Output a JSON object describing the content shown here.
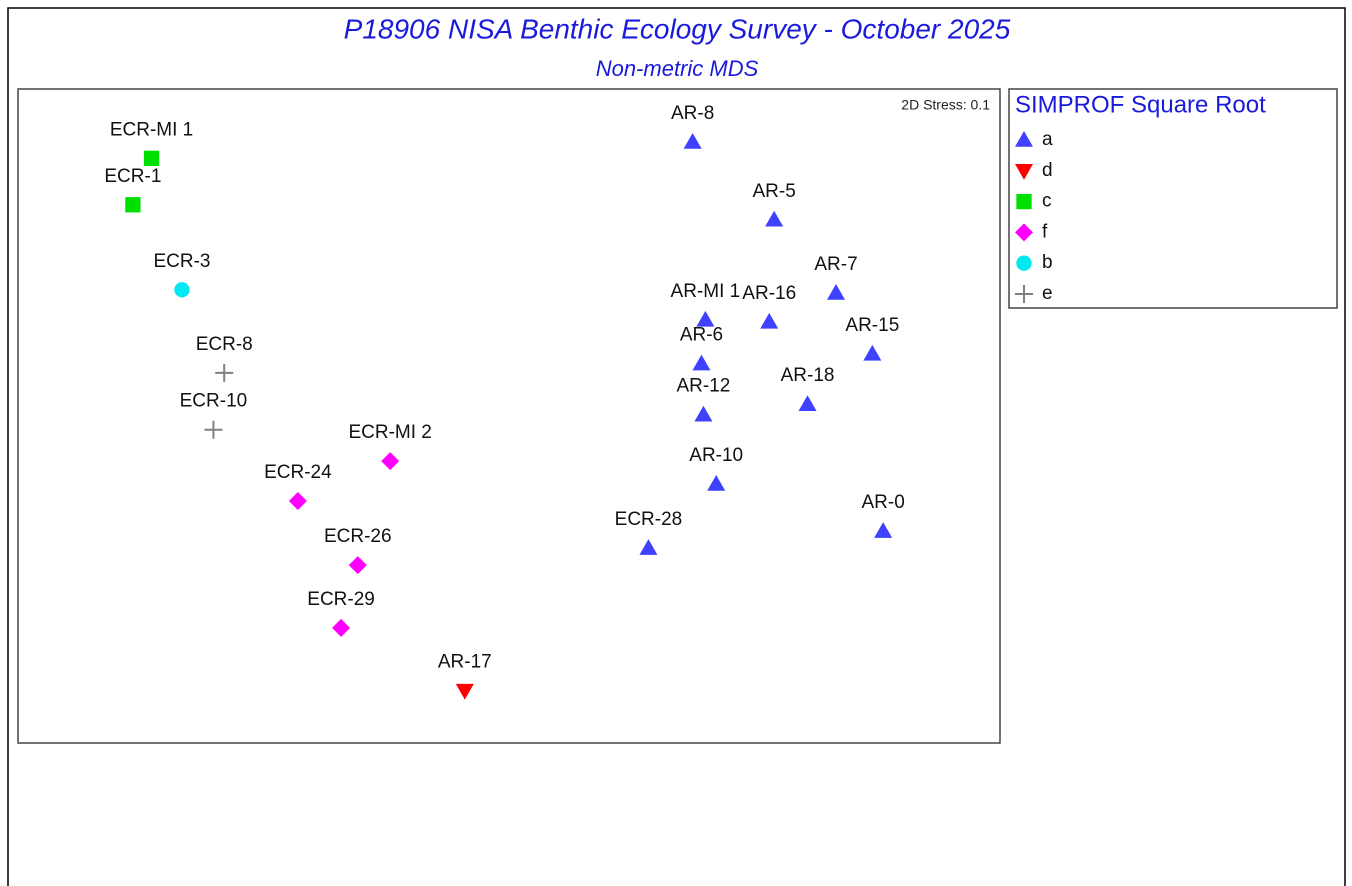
{
  "chart_data": {
    "type": "scatter",
    "title": "P18906 NISA Benthic Ecology Survey - October 2025",
    "subtitle": "Non-metric MDS",
    "annotation": "2D Stress: 0.1",
    "legend_title": "SIMPROF Square Root",
    "legend": "outside-right",
    "xlim": [
      0,
      100
    ],
    "ylim": [
      0,
      100
    ],
    "series": [
      {
        "name": "a",
        "color": "#4040ff",
        "marker": "triangle-up",
        "labels": [
          "AR-8",
          "AR-5",
          "AR-7",
          "AR-MI 1",
          "AR-16",
          "AR-15",
          "AR-6",
          "AR-18",
          "AR-12",
          "AR-10",
          "AR-0",
          "ECR-28"
        ],
        "x": [
          68.7,
          77.0,
          83.3,
          70.0,
          76.5,
          87.0,
          69.6,
          80.4,
          69.8,
          71.1,
          88.1,
          64.2
        ],
        "y": [
          91.9,
          80.0,
          68.8,
          64.7,
          64.4,
          59.5,
          58.0,
          51.8,
          50.2,
          39.6,
          32.4,
          29.8
        ]
      },
      {
        "name": "d",
        "color": "#ff0000",
        "marker": "triangle-down",
        "labels": [
          "AR-17"
        ],
        "x": [
          45.5
        ],
        "y": [
          8.0
        ]
      },
      {
        "name": "c",
        "color": "#00e000",
        "marker": "square",
        "labels": [
          "ECR-MI 1",
          "ECR-1"
        ],
        "x": [
          13.6,
          11.7
        ],
        "y": [
          89.4,
          82.3
        ]
      },
      {
        "name": "f",
        "color": "#ff00ff",
        "marker": "diamond",
        "labels": [
          "ECR-MI 2",
          "ECR-24",
          "ECR-26",
          "ECR-29"
        ],
        "x": [
          37.9,
          28.5,
          34.6,
          32.9
        ],
        "y": [
          43.1,
          37.0,
          27.2,
          17.6
        ]
      },
      {
        "name": "b",
        "color": "#00e8f0",
        "marker": "circle",
        "labels": [
          "ECR-3"
        ],
        "x": [
          16.7
        ],
        "y": [
          69.3
        ]
      },
      {
        "name": "e",
        "color": "#808080",
        "marker": "plus",
        "labels": [
          "ECR-8",
          "ECR-10"
        ],
        "x": [
          21.0,
          19.9
        ],
        "y": [
          56.6,
          47.9
        ]
      }
    ]
  }
}
